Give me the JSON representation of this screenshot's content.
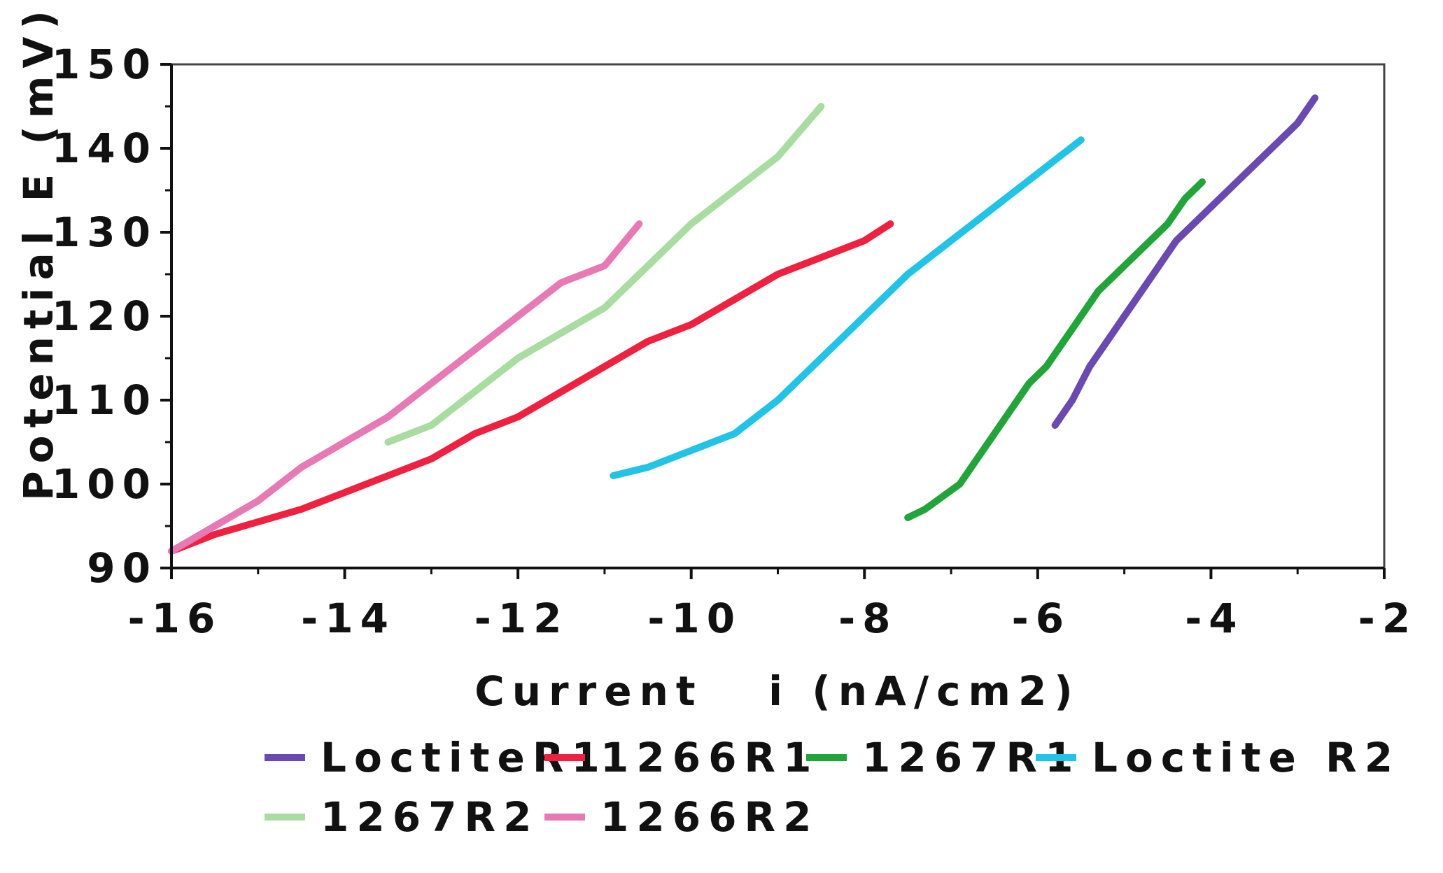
{
  "chart_data": {
    "type": "line",
    "title": "",
    "xlabel": "Current   i (nA/cm2)",
    "ylabel": "Potential E (mV)",
    "xlim": [
      -16,
      -2
    ],
    "ylim": [
      90,
      150
    ],
    "x_ticks": [
      -16,
      -14,
      -12,
      -10,
      -8,
      -6,
      -4,
      -2
    ],
    "y_ticks": [
      90,
      100,
      110,
      120,
      130,
      140,
      150
    ],
    "x_tick_labels": [
      "-16",
      "-14",
      "-12",
      "-10",
      "-8",
      "-6",
      "-4",
      "-2"
    ],
    "y_tick_labels": [
      "90",
      "100",
      "110",
      "120",
      "130",
      "140",
      "150"
    ],
    "grid": false,
    "legend_position": "bottom",
    "series": [
      {
        "name": "LoctiteR1",
        "color": "#6a4ab0",
        "x": [
          -5.8,
          -5.6,
          -5.4,
          -5.2,
          -5.0,
          -4.8,
          -4.6,
          -4.4,
          -4.2,
          -4.0,
          -3.8,
          -3.6,
          -3.4,
          -3.2,
          -3.0,
          -2.8
        ],
        "y": [
          107,
          110,
          114,
          117,
          120,
          123,
          126,
          129,
          131,
          133,
          135,
          137,
          139,
          141,
          143,
          146
        ]
      },
      {
        "name": "1266R1",
        "color": "#ee2240",
        "x": [
          -16.0,
          -15.5,
          -15.0,
          -14.5,
          -14.0,
          -13.5,
          -13.0,
          -12.5,
          -12.0,
          -11.5,
          -11.0,
          -10.5,
          -10.0,
          -9.5,
          -9.0,
          -8.5,
          -8.0,
          -7.7
        ],
        "y": [
          92,
          94,
          95.5,
          97,
          99,
          101,
          103,
          106,
          108,
          111,
          114,
          117,
          119,
          122,
          125,
          127,
          129,
          131
        ]
      },
      {
        "name": "1267R1",
        "color": "#22a43a",
        "x": [
          -7.5,
          -7.3,
          -7.1,
          -6.9,
          -6.7,
          -6.5,
          -6.3,
          -6.1,
          -5.9,
          -5.7,
          -5.5,
          -5.3,
          -5.1,
          -4.9,
          -4.7,
          -4.5,
          -4.3,
          -4.1
        ],
        "y": [
          96,
          97,
          98.5,
          100,
          103,
          106,
          109,
          112,
          114,
          117,
          120,
          123,
          125,
          127,
          129,
          131,
          134,
          136
        ]
      },
      {
        "name": "Loctite R2",
        "color": "#22c3e6",
        "x": [
          -10.9,
          -10.5,
          -10.0,
          -9.5,
          -9.0,
          -8.5,
          -8.0,
          -7.5,
          -7.0,
          -6.5,
          -6.0,
          -5.5
        ],
        "y": [
          101,
          102,
          104,
          106,
          110,
          115,
          120,
          125,
          129,
          133,
          137,
          141
        ]
      },
      {
        "name": "1267R2",
        "color": "#a8dca0",
        "x": [
          -13.5,
          -13.0,
          -12.5,
          -12.0,
          -11.5,
          -11.0,
          -10.5,
          -10.0,
          -9.5,
          -9.0,
          -8.5
        ],
        "y": [
          105,
          107,
          111,
          115,
          118,
          121,
          126,
          131,
          135,
          139,
          145
        ]
      },
      {
        "name": "1266R2",
        "color": "#e77ab4",
        "x": [
          -16.0,
          -15.5,
          -15.0,
          -14.5,
          -14.0,
          -13.5,
          -13.0,
          -12.5,
          -12.0,
          -11.5,
          -11.0,
          -10.6
        ],
        "y": [
          92,
          95,
          98,
          102,
          105,
          108,
          112,
          116,
          120,
          124,
          126,
          131
        ]
      }
    ]
  }
}
